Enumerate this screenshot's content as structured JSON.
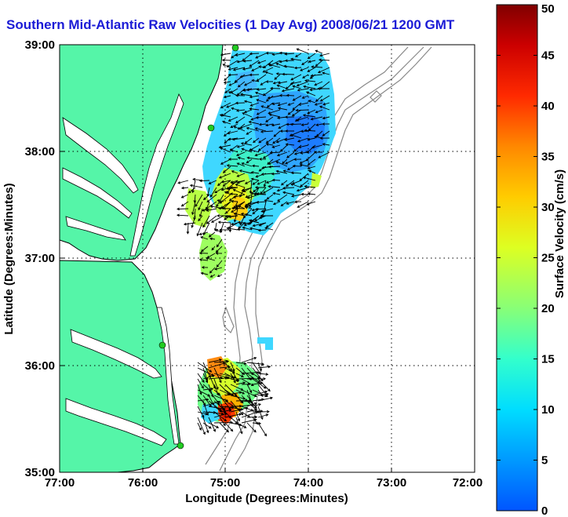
{
  "title": "Southern Mid-Atlantic Raw Velocities (1 Day Avg) 2008/06/21 1200 GMT",
  "x_axis": {
    "label": "Longitude (Degrees:Minutes)",
    "ticks": [
      "77:00",
      "76:00",
      "75:00",
      "74:00",
      "73:00",
      "72:00"
    ]
  },
  "y_axis": {
    "label": "Latitude (Degrees:Minutes)",
    "ticks": [
      "39:00",
      "38:00",
      "37:00",
      "36:00",
      "35:00"
    ]
  },
  "colorbar": {
    "label": "Surface Velocity (cm/s)",
    "ticks": [
      "50",
      "45",
      "40",
      "35",
      "30",
      "25",
      "20",
      "15",
      "10",
      "5",
      "0"
    ],
    "range": [
      0,
      50
    ],
    "colormap": [
      "#0000ff",
      "#0066ff",
      "#00ccff",
      "#33ffcc",
      "#99ff66",
      "#ffff00",
      "#ffaa00",
      "#ff4400",
      "#cc0000",
      "#800000"
    ]
  },
  "colors": {
    "land": "#55f5a8",
    "coastline": "#000000",
    "bathymetry": "#888888",
    "station": "#22cc22",
    "grid": "#000000"
  },
  "grid": "dotted"
}
